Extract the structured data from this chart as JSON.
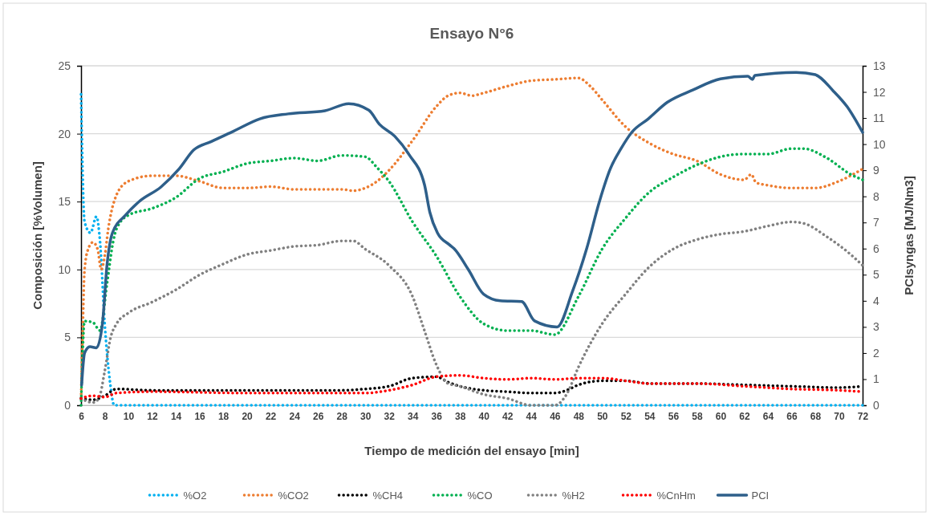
{
  "chart_data": {
    "type": "line",
    "title": "Ensayo N°6",
    "xlabel": "Tiempo de medición del ensayo [min]",
    "ylabel": "Composición  [%Volumen]",
    "y2label": "PCIsyngas [MJ/Nm3]",
    "xlim": [
      6,
      72
    ],
    "xticks": [
      6,
      8,
      10,
      12,
      14,
      16,
      18,
      20,
      22,
      24,
      26,
      28,
      30,
      32,
      34,
      36,
      38,
      40,
      42,
      44,
      46,
      48,
      50,
      52,
      54,
      56,
      58,
      60,
      62,
      64,
      66,
      68,
      70,
      72
    ],
    "ylim": [
      0,
      25
    ],
    "yticks": [
      0,
      5,
      10,
      15,
      20,
      25
    ],
    "y2lim": [
      0,
      13
    ],
    "y2ticks": [
      0,
      1,
      2,
      3,
      4,
      5,
      6,
      7,
      8,
      9,
      10,
      11,
      12,
      13
    ],
    "grid": "y",
    "legend": "bottom",
    "series": [
      {
        "name": "%O2",
        "color": "#00b0f0",
        "line_style": "dotted",
        "x": [
          6,
          6.3,
          6.8,
          7.3,
          7.6,
          8,
          8.45,
          8.8,
          10,
          20,
          30,
          40,
          50,
          60,
          72
        ],
        "values": [
          22.9,
          13.5,
          12.7,
          13.9,
          12.1,
          6,
          1.7,
          0,
          0,
          0,
          0,
          0,
          0,
          0,
          0
        ]
      },
      {
        "name": "%CO2",
        "color": "#ed7d31",
        "line_style": "dotted",
        "x": [
          6,
          6.1,
          6.3,
          6.6,
          7,
          7.4,
          7.7,
          8,
          8.3,
          9,
          10,
          12,
          14,
          16,
          18,
          20,
          22,
          24,
          26,
          28,
          29,
          30,
          31,
          32,
          34,
          36,
          37,
          38,
          39,
          40,
          42,
          44,
          46,
          48,
          49,
          50,
          52,
          54,
          56,
          58,
          60,
          62,
          62.6,
          63,
          64,
          66,
          68,
          70,
          72
        ],
        "values": [
          0.5,
          4,
          10,
          11.5,
          12,
          11.5,
          10,
          11,
          13,
          15.5,
          16.5,
          16.9,
          16.9,
          16.5,
          16,
          16,
          16.1,
          15.9,
          15.9,
          15.9,
          15.8,
          16,
          16.5,
          17.3,
          19.5,
          22,
          22.8,
          23,
          22.8,
          23,
          23.5,
          23.9,
          24,
          24.1,
          23.5,
          22.5,
          20.5,
          19.3,
          18.5,
          18,
          17,
          16.6,
          17,
          16.4,
          16.2,
          16,
          16,
          16.5,
          17.4
        ]
      },
      {
        "name": "%CH4",
        "color": "#000000",
        "line_style": "dotted",
        "x": [
          6,
          7,
          8,
          9,
          12,
          20,
          28,
          30,
          32,
          34,
          36,
          37,
          38,
          40,
          42,
          44,
          46,
          47,
          48,
          50,
          52,
          54,
          58,
          62,
          66,
          70,
          72
        ],
        "values": [
          0.5,
          0.4,
          0.7,
          1.2,
          1.1,
          1.1,
          1.1,
          1.2,
          1.4,
          2,
          2.1,
          1.7,
          1.4,
          1.1,
          1,
          0.9,
          0.9,
          1.1,
          1.5,
          1.8,
          1.8,
          1.6,
          1.6,
          1.5,
          1.4,
          1.3,
          1.4
        ]
      },
      {
        "name": "%CO",
        "color": "#00b050",
        "line_style": "dotted",
        "x": [
          6,
          6.1,
          6.3,
          7,
          7.6,
          8.2,
          8.7,
          9,
          10,
          12,
          14,
          16,
          18,
          20,
          22,
          24,
          26,
          28,
          30,
          31,
          32,
          34,
          36,
          38,
          40,
          42,
          44,
          46,
          48,
          50,
          52,
          54,
          56,
          58,
          60,
          62,
          64,
          66,
          67,
          69,
          71,
          72
        ],
        "values": [
          0,
          3,
          6.2,
          6.1,
          5.5,
          9,
          12,
          13,
          14,
          14.5,
          15.3,
          16.7,
          17.2,
          17.8,
          18,
          18.2,
          18,
          18.4,
          18.3,
          17.5,
          16.5,
          13.5,
          11,
          8,
          6,
          5.5,
          5.5,
          5.2,
          8,
          11.5,
          13.8,
          15.7,
          16.8,
          17.7,
          18.3,
          18.5,
          18.5,
          18.9,
          18.9,
          18.2,
          17,
          16.6
        ]
      },
      {
        "name": "%H2",
        "color": "#808080",
        "line_style": "dotted",
        "x": [
          6,
          7,
          7.5,
          8,
          8.5,
          9,
          10,
          12,
          14,
          16,
          18,
          20,
          22,
          24,
          26,
          28,
          29,
          30,
          32,
          34,
          35,
          36,
          37,
          38,
          40,
          42,
          44,
          46,
          47,
          48,
          50,
          52,
          54,
          56,
          58,
          60,
          62,
          64,
          66,
          67,
          69,
          71,
          72
        ],
        "values": [
          0.5,
          0.2,
          0.5,
          2.5,
          5,
          6,
          6.8,
          7.6,
          8.5,
          9.6,
          10.4,
          11.1,
          11.4,
          11.7,
          11.8,
          12.1,
          12.1,
          11.5,
          10.3,
          8,
          5.5,
          3,
          1.6,
          1.4,
          0.8,
          0.5,
          0,
          0,
          0.8,
          2.8,
          6,
          8.2,
          10.2,
          11.5,
          12.2,
          12.6,
          12.8,
          13.2,
          13.5,
          13.4,
          12.4,
          11.1,
          10.3
        ]
      },
      {
        "name": "%CnHm",
        "color": "#ff0000",
        "line_style": "dotted",
        "x": [
          6,
          7,
          8,
          9,
          12,
          20,
          28,
          30,
          32,
          34,
          36,
          38,
          40,
          42,
          44,
          46,
          48,
          50,
          52,
          54,
          58,
          62,
          66,
          70,
          72
        ],
        "values": [
          0.5,
          0.7,
          0.6,
          0.9,
          1,
          0.9,
          0.9,
          0.9,
          1.1,
          1.5,
          2.1,
          2.2,
          2,
          1.9,
          2,
          1.9,
          2,
          2,
          1.8,
          1.6,
          1.6,
          1.4,
          1.2,
          1.1,
          1
        ]
      },
      {
        "name": "PCI",
        "color": "#2e5f8a",
        "line_style": "solid",
        "axis": "y2",
        "x": [
          6.05,
          6.3,
          6.75,
          7.3,
          7.8,
          8.2,
          8.65,
          9.8,
          10.9,
          12.75,
          14.3,
          15.5,
          17,
          18.9,
          21.1,
          23.5,
          26.6,
          28.6,
          30.3,
          31.2,
          32.5,
          33.7,
          35,
          35.45,
          36.1,
          37.1,
          37.5,
          38.7,
          40,
          41.4,
          43.2,
          44.3,
          46.2,
          47.5,
          48.7,
          49.8,
          50.7,
          51.6,
          52.5,
          53.9,
          55.5,
          57.7,
          60,
          62.3,
          62.7,
          62.9,
          66.4,
          68,
          69.5,
          70.7,
          72
        ],
        "values": [
          0.77,
          2,
          2.24,
          2.2,
          3.1,
          5.4,
          6.6,
          7.3,
          7.8,
          8.36,
          9.06,
          9.77,
          10.1,
          10.5,
          10.97,
          11.16,
          11.28,
          11.55,
          11.3,
          10.76,
          10.3,
          9.6,
          8.45,
          7.4,
          6.6,
          6.15,
          6,
          5.2,
          4.25,
          4,
          3.97,
          3.23,
          3,
          4.36,
          6,
          7.84,
          9.06,
          9.83,
          10.45,
          10.97,
          11.6,
          12.08,
          12.5,
          12.6,
          12.48,
          12.63,
          12.75,
          12.66,
          12.05,
          11.43,
          10.45
        ]
      }
    ]
  }
}
